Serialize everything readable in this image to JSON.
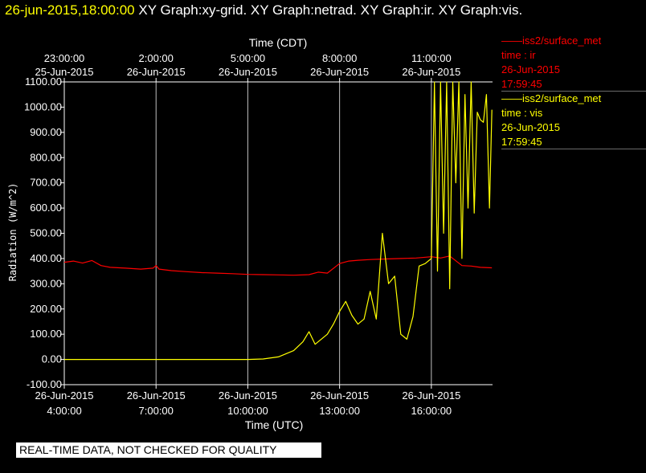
{
  "header": {
    "timestamp": "26-jun-2015,18:00:00",
    "graphs": "XY Graph:xy-grid.  XY Graph:netrad.  XY Graph:ir.  XY Graph:vis."
  },
  "legend": [
    {
      "label": "iss2/surface_met",
      "variable": "time : ir",
      "date": "26-Jun-2015",
      "time": "17:59:45",
      "color": "#ff0000"
    },
    {
      "label": "iss2/surface_met",
      "variable": "time : vis",
      "date": "26-Jun-2015",
      "time": "17:59:45",
      "color": "#ffff00"
    }
  ],
  "disclaimer": "REAL-TIME DATA, NOT CHECKED FOR QUALITY",
  "colors": {
    "background": "#000000",
    "foreground": "#ffffff",
    "grid": "#ffffff",
    "ir": "#ff0000",
    "vis": "#ffff00"
  },
  "chart_data": {
    "type": "line",
    "title": "",
    "ylabel": "Radiation (W/m^2)",
    "xlabel": "Time (UTC)",
    "x2label": "Time (CDT)",
    "ylim": [
      -100,
      1100
    ],
    "xlim_hours_utc": [
      4.0,
      18.0
    ],
    "y_ticks": [
      "-100.00",
      "0.00",
      "100.00",
      "200.00",
      "300.00",
      "400.00",
      "500.00",
      "600.00",
      "700.00",
      "800.00",
      "900.00",
      "1000.00",
      "1100.00"
    ],
    "x_ticks": [
      {
        "hour": 4,
        "date": "26-Jun-2015",
        "time": "4:00:00"
      },
      {
        "hour": 7,
        "date": "26-Jun-2015",
        "time": "7:00:00"
      },
      {
        "hour": 10,
        "date": "26-Jun-2015",
        "time": "10:00:00"
      },
      {
        "hour": 13,
        "date": "26-Jun-2015",
        "time": "13:00:00"
      },
      {
        "hour": 16,
        "date": "26-Jun-2015",
        "time": "16:00:00"
      }
    ],
    "x2_ticks": [
      {
        "hour": 4,
        "time": "23:00:00",
        "date": "25-Jun-2015"
      },
      {
        "hour": 7,
        "time": "2:00:00",
        "date": "26-Jun-2015"
      },
      {
        "hour": 10,
        "time": "5:00:00",
        "date": "26-Jun-2015"
      },
      {
        "hour": 13,
        "time": "8:00:00",
        "date": "26-Jun-2015"
      },
      {
        "hour": 16,
        "time": "11:00:00",
        "date": "26-Jun-2015"
      }
    ],
    "grid": true,
    "legend_position": "right",
    "series": [
      {
        "name": "time : ir",
        "color": "#ff0000",
        "x": [
          4.0,
          4.3,
          4.6,
          4.9,
          5.2,
          5.5,
          6.0,
          6.5,
          6.9,
          7.0,
          7.1,
          7.5,
          8.0,
          8.5,
          9.0,
          9.5,
          10.0,
          10.5,
          11.0,
          11.5,
          12.0,
          12.3,
          12.6,
          13.0,
          13.3,
          13.6,
          14.0,
          14.5,
          15.0,
          15.5,
          16.0,
          16.3,
          16.6,
          17.0,
          17.3,
          17.6,
          17.98
        ],
        "y": [
          385,
          390,
          382,
          392,
          372,
          365,
          362,
          358,
          362,
          372,
          358,
          352,
          348,
          344,
          342,
          340,
          337,
          336,
          335,
          334,
          336,
          346,
          342,
          380,
          390,
          393,
          396,
          398,
          400,
          402,
          407,
          402,
          410,
          372,
          370,
          365,
          363
        ]
      },
      {
        "name": "time : vis",
        "color": "#ffff00",
        "x": [
          4.0,
          5.0,
          6.0,
          7.0,
          8.0,
          9.0,
          10.0,
          10.5,
          11.0,
          11.5,
          11.8,
          12.0,
          12.2,
          12.4,
          12.6,
          12.8,
          13.0,
          13.2,
          13.4,
          13.6,
          13.8,
          14.0,
          14.2,
          14.4,
          14.6,
          14.8,
          15.0,
          15.2,
          15.4,
          15.6,
          15.8,
          16.0,
          16.1,
          16.2,
          16.3,
          16.4,
          16.5,
          16.6,
          16.7,
          16.8,
          16.9,
          17.0,
          17.1,
          17.2,
          17.3,
          17.4,
          17.5,
          17.6,
          17.7,
          17.8,
          17.9,
          17.98
        ],
        "y": [
          0,
          0,
          0,
          0,
          0,
          0,
          0,
          2,
          10,
          35,
          70,
          110,
          60,
          80,
          100,
          140,
          190,
          230,
          175,
          140,
          160,
          270,
          160,
          500,
          300,
          330,
          100,
          80,
          170,
          370,
          380,
          400,
          1100,
          350,
          1100,
          500,
          1100,
          280,
          1100,
          700,
          1100,
          400,
          1050,
          600,
          1100,
          580,
          980,
          950,
          940,
          1050,
          600,
          990
        ]
      }
    ]
  }
}
